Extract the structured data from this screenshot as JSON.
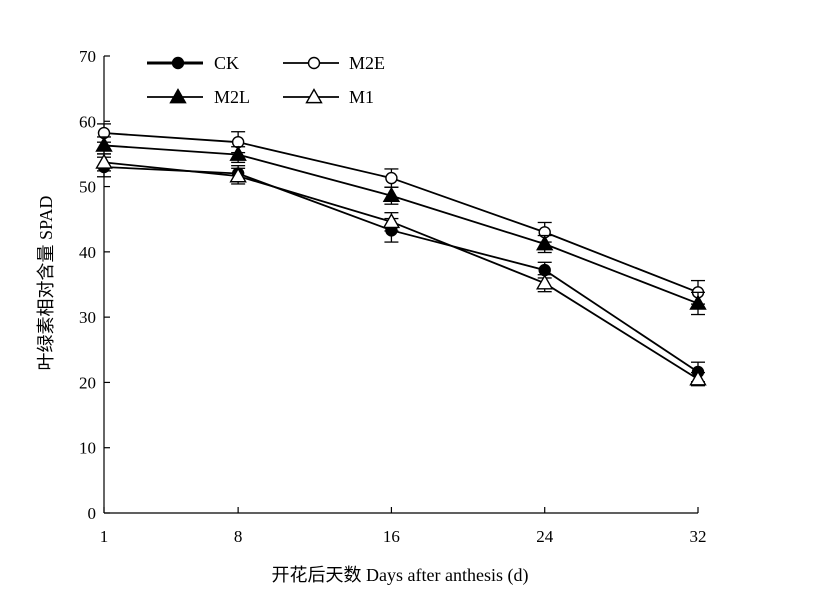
{
  "chart_data": {
    "type": "line",
    "xlabel": "开花后天数 Days after anthesis (d)",
    "ylabel": "叶绿素相对含量 SPAD",
    "x": [
      1,
      8,
      16,
      24,
      32
    ],
    "x_tick_labels": [
      "1",
      "8",
      "16",
      "24",
      "32"
    ],
    "ylim": [
      0,
      70
    ],
    "y_ticks": [
      0,
      10,
      20,
      30,
      40,
      50,
      60,
      70
    ],
    "y_tick_labels": [
      "0",
      "10",
      "20",
      "30",
      "40",
      "50",
      "60",
      "70"
    ],
    "grid": false,
    "legend_position": "top-left",
    "series": [
      {
        "name": "CK",
        "marker": "filled-circle",
        "values": [
          53.0,
          52.0,
          43.3,
          37.2,
          21.6
        ],
        "errors": [
          1.5,
          1.2,
          1.8,
          1.2,
          1.5
        ]
      },
      {
        "name": "M2E",
        "marker": "open-circle",
        "values": [
          58.2,
          56.8,
          51.3,
          43.0,
          33.8
        ],
        "errors": [
          1.4,
          1.6,
          1.4,
          1.5,
          1.8
        ]
      },
      {
        "name": "M2L",
        "marker": "filled-triangle",
        "values": [
          56.3,
          54.9,
          48.6,
          41.2,
          32.1
        ],
        "errors": [
          1.3,
          1.2,
          1.3,
          1.3,
          1.7
        ]
      },
      {
        "name": "M1",
        "marker": "open-triangle",
        "values": [
          53.7,
          51.6,
          44.6,
          35.2,
          20.5
        ],
        "errors": [
          1.3,
          1.2,
          1.4,
          1.3,
          1.0
        ]
      }
    ]
  }
}
